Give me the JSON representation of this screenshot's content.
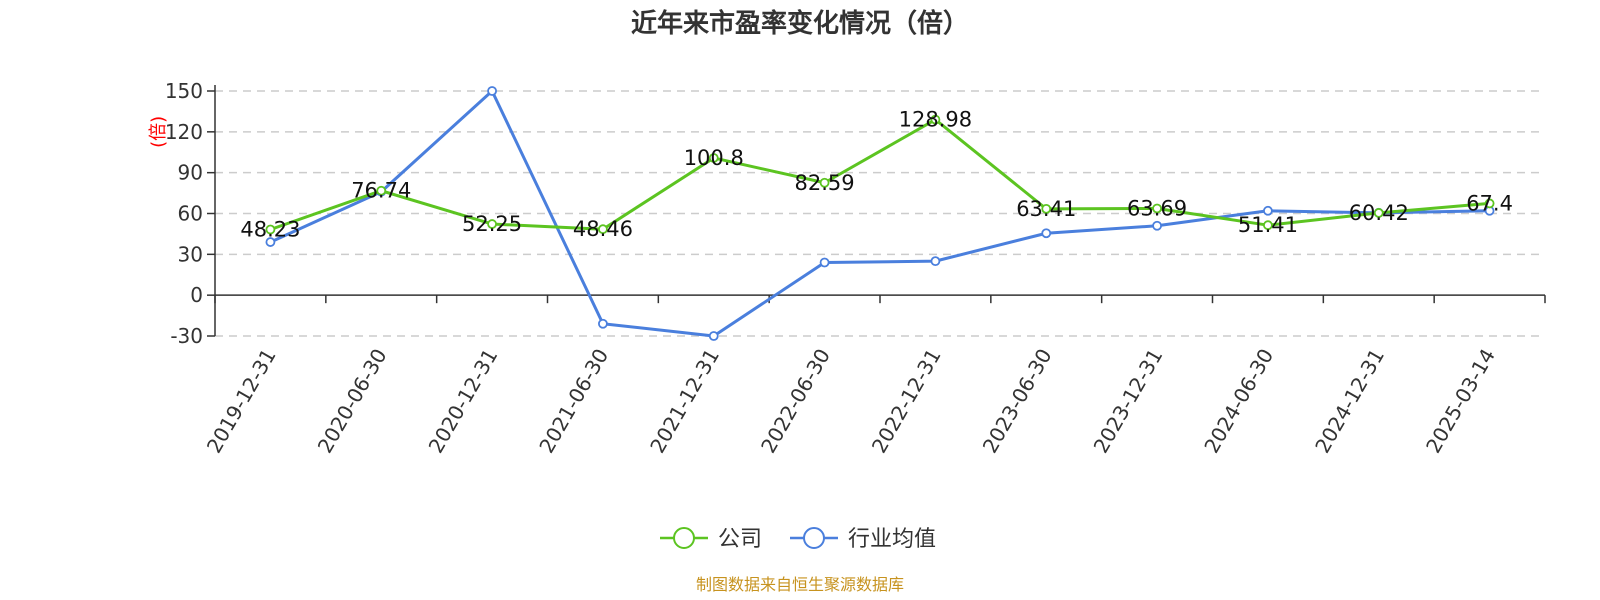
{
  "chart_data": {
    "type": "line",
    "title": "近年来市盈率变化情况（倍）",
    "ylabel": "(倍)",
    "xlabel": "",
    "ylim": [
      -30,
      150
    ],
    "yticks": [
      -30,
      0,
      30,
      60,
      90,
      120,
      150
    ],
    "grid": true,
    "legend_position": "bottom",
    "categories": [
      "2019-12-31",
      "2020-06-30",
      "2020-12-31",
      "2021-06-30",
      "2021-12-31",
      "2022-06-30",
      "2022-12-31",
      "2023-06-30",
      "2023-12-31",
      "2024-06-30",
      "2024-12-31",
      "2025-03-14"
    ],
    "series": [
      {
        "name": "公司",
        "color": "#5cc421",
        "values": [
          48.23,
          76.74,
          52.25,
          48.46,
          100.8,
          82.59,
          128.98,
          63.41,
          63.69,
          51.41,
          60.42,
          67.4
        ],
        "labels": [
          "48.23",
          "76.74",
          "52.25",
          "48.46",
          "100.8",
          "82.59",
          "128.98",
          "63.41",
          "63.69",
          "51.41",
          "60.42",
          "67.4"
        ]
      },
      {
        "name": "行业均值",
        "color": "#4a7fdd",
        "values": [
          39,
          76,
          150,
          -21,
          -30,
          24,
          25,
          45.5,
          51,
          62,
          60.5,
          62
        ]
      }
    ]
  },
  "source": "制图数据来自恒生聚源数据库"
}
